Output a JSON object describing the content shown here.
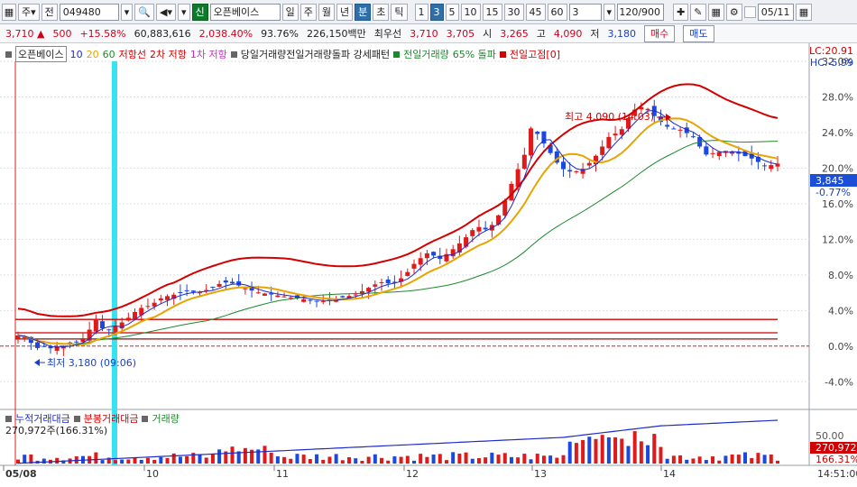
{
  "toolbar": {
    "market": "주",
    "prev_label": "전",
    "code": "049480",
    "credit_badge": "신",
    "name": "오픈베이스",
    "period_buttons": [
      "일",
      "주",
      "월",
      "년",
      "분",
      "초",
      "틱"
    ],
    "selected_period": "분",
    "interval_buttons": [
      "1",
      "3",
      "5",
      "10",
      "15",
      "30",
      "45",
      "60"
    ],
    "selected_interval": "3",
    "interval_value": "3",
    "count": "120/900",
    "date": "05/11"
  },
  "quote": {
    "price": "3,710",
    "arrow": "▲",
    "change": "500",
    "rate": "+15.58%",
    "volume": "60,883,616",
    "volume_rate": "2,038.40%",
    "turnover": "93.76%",
    "amount": "226,150백만",
    "best_ask_label": "최우선",
    "best_ask": "3,710",
    "best_bid": "3,705",
    "open_label": "시",
    "open": "3,265",
    "high_label": "고",
    "high": "4,090",
    "low_label": "저",
    "low": "3,180",
    "buy_label": "매수",
    "sell_label": "매도"
  },
  "legend": {
    "name": "오픈베이스",
    "ma10": "10",
    "ma20": "20",
    "ma60": "60",
    "resist": "저항선",
    "resist2": "2차 저항",
    "resist1": "1차 저항",
    "pattern": "당일거래량전일거래량돌파 강세패턴",
    "prev_vol": "전일거래량",
    "breakout": "65% 돌파",
    "prev_high": "전일고점[0]"
  },
  "price_panel": {
    "lc": "LC:20.91",
    "hc": "HC:-5.99",
    "ticks": [
      "32.0%",
      "28.0%",
      "24.0%",
      "20.0%",
      "16.0%",
      "12.0%",
      "8.0%",
      "4.0%",
      "0.0%",
      "-4.0%"
    ],
    "current_value": "3,845",
    "current_rate": "-0.77%",
    "high_annotation": "최고 4,090 (14:03)",
    "low_annotation": "최저 3,180 (09:06)"
  },
  "volume_panel": {
    "legend_a": "누적거래대금",
    "legend_b": "분봉거래대금",
    "legend_c": "거래량",
    "volume_text": "270,972주(166.31%)",
    "tick_50": "50.00",
    "current_value": "270,972",
    "current_rate": "166.31%"
  },
  "time_axis": {
    "labels": [
      "05/08",
      "10",
      "11",
      "12",
      "13",
      "14"
    ],
    "current_time": "14:51:00"
  },
  "chart_data": {
    "type": "candlestick",
    "y_unit": "% change vs previous close",
    "ylim": [
      -6.0,
      32.0
    ],
    "ma_colors": {
      "ma10": "#1e2cc8",
      "ma20": "#e8a400",
      "ma60": "#1b8a2a"
    },
    "envelope_color": "#d40000",
    "horizontal_lines": [
      3.0,
      1.5,
      0.8
    ],
    "current": 3.845
  }
}
